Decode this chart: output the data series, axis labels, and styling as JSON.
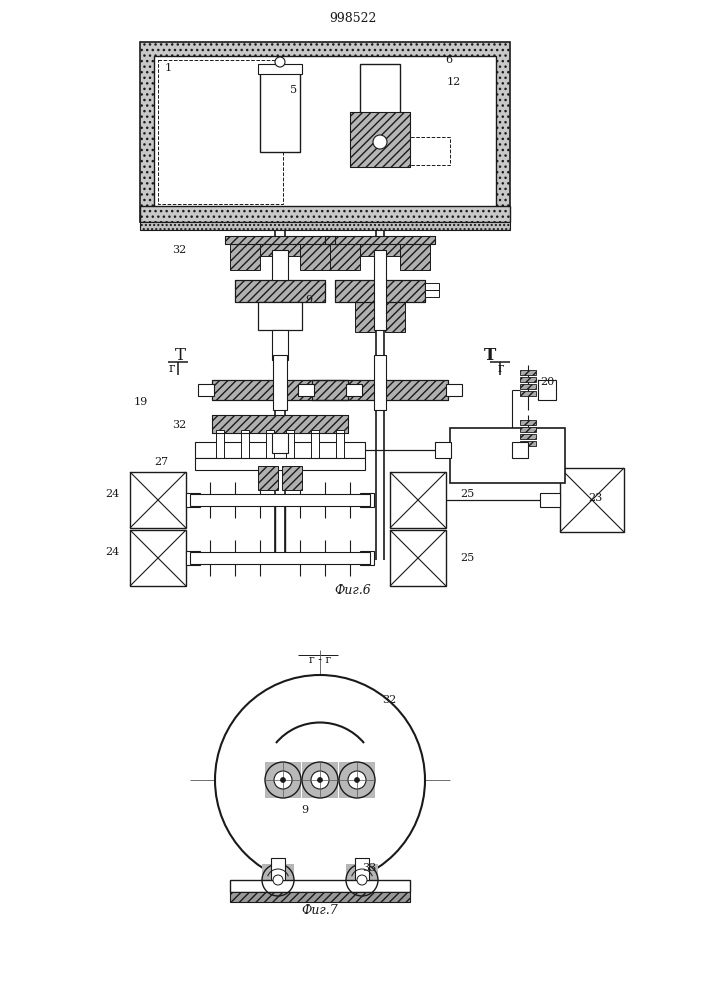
{
  "title": "998522",
  "fig6_label": "Фиг.6",
  "fig7_label": "Фиг.7",
  "fig7_section_label": "г - г",
  "line_color": "#1a1a1a",
  "hatch_fc": "#c0c0c0",
  "white": "#ffffff",
  "bg": "#ffffff"
}
